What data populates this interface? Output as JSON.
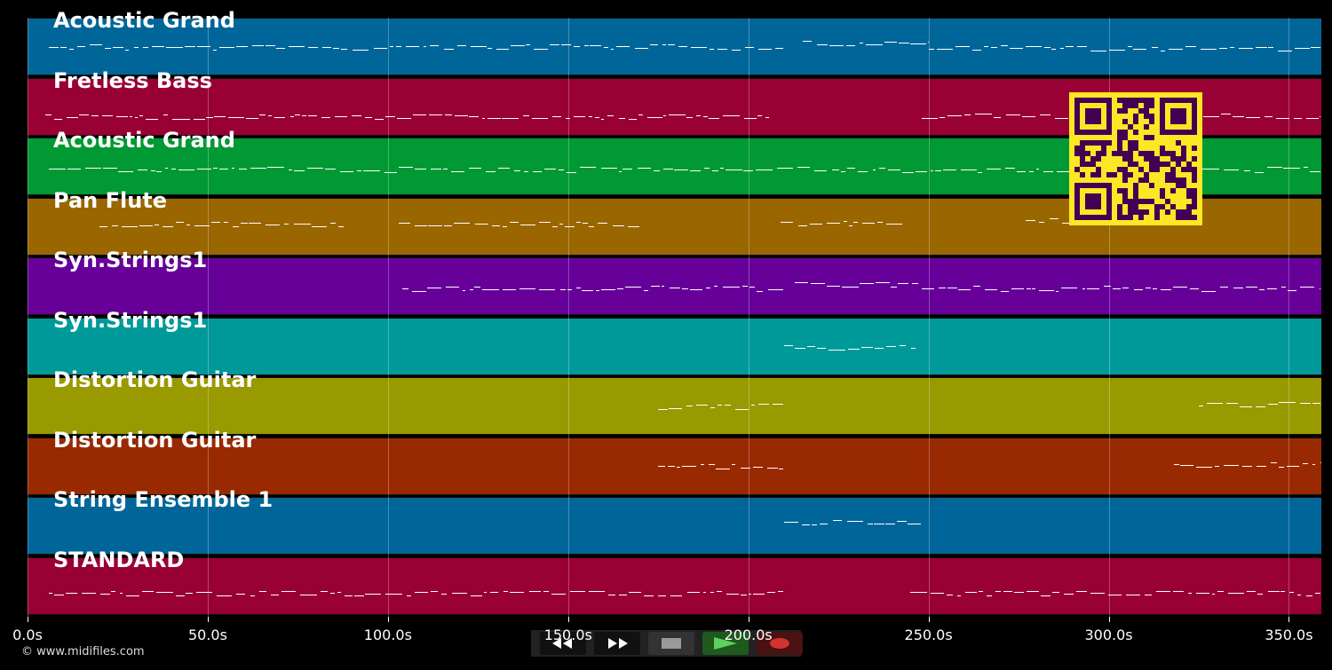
{
  "colors": {
    "background": "#000000",
    "note": "#ffffff",
    "qr_fill": "#fde725",
    "qr_dark": "#440154"
  },
  "tracks": [
    {
      "name": "Acoustic Grand",
      "color": "#006699"
    },
    {
      "name": "Fretless Bass",
      "color": "#990033"
    },
    {
      "name": "Acoustic Grand",
      "color": "#009933"
    },
    {
      "name": "Pan Flute",
      "color": "#996600"
    },
    {
      "name": "Syn.Strings1",
      "color": "#660099"
    },
    {
      "name": "Syn.Strings1",
      "color": "#009999"
    },
    {
      "name": "Distortion Guitar",
      "color": "#999900"
    },
    {
      "name": "Distortion Guitar",
      "color": "#992900"
    },
    {
      "name": "String Ensemble 1",
      "color": "#006699"
    },
    {
      "name": "STANDARD",
      "color": "#990033"
    }
  ],
  "time_axis": {
    "ticks": [
      "0.0s",
      "50.0s",
      "100.0s",
      "150.0s",
      "200.0s",
      "250.0s",
      "300.0s",
      "350.0s"
    ],
    "max_seconds": 359
  },
  "credit": "© www.midifiles.com",
  "controls": [
    {
      "name": "rewind-button",
      "icon": "rewind-icon"
    },
    {
      "name": "fast-forward-button",
      "icon": "fast-forward-icon"
    },
    {
      "name": "stop-button",
      "icon": "stop-icon"
    },
    {
      "name": "play-button",
      "icon": "play-icon"
    },
    {
      "name": "record-button",
      "icon": "record-icon"
    }
  ]
}
